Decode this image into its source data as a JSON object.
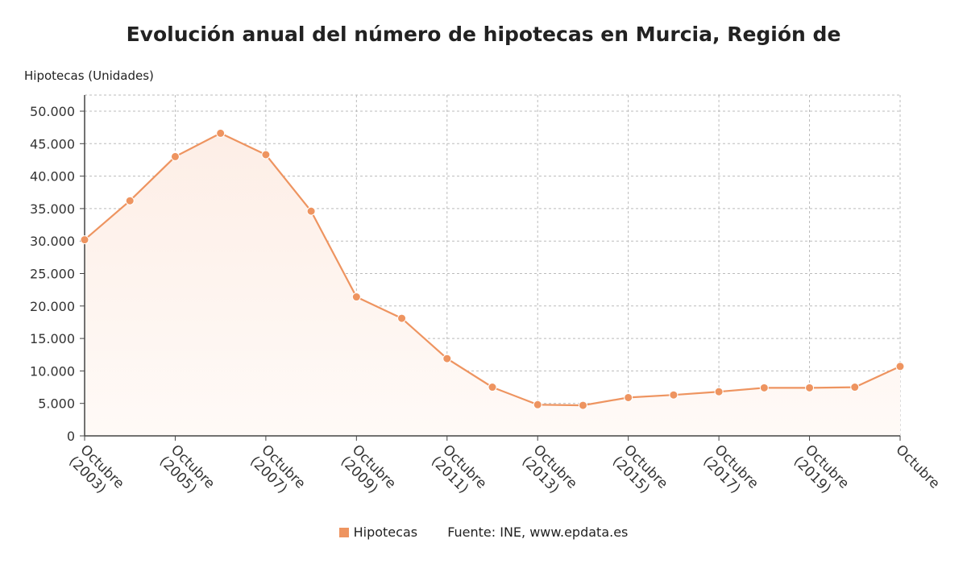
{
  "colors": {
    "series": "#ee9460",
    "area_top": "#fdeee6",
    "area_bottom": "#fffaf7",
    "grid": "#bbbbbb",
    "axis": "#444444"
  },
  "legend": {
    "series_label": "Hipotecas",
    "source": "Fuente: INE, www.epdata.es"
  },
  "chart_data": {
    "type": "area",
    "title": "Evolución anual del número de hipotecas en Murcia, Región de",
    "ylabel": "Hipotecas (Unidades)",
    "xlabel": "",
    "ylim": [
      0,
      50000
    ],
    "y_ticks": [
      "0",
      "5.000",
      "10.000",
      "15.000",
      "20.000",
      "25.000",
      "30.000",
      "35.000",
      "40.000",
      "45.000",
      "50.000"
    ],
    "x_tick_labels": [
      [
        "Octubre",
        "(2003)"
      ],
      [
        "Octubre",
        "(2005)"
      ],
      [
        "Octubre",
        "(2007)"
      ],
      [
        "Octubre",
        "(2009)"
      ],
      [
        "Octubre",
        "(2011)"
      ],
      [
        "Octubre",
        "(2013)"
      ],
      [
        "Octubre",
        "(2015)"
      ],
      [
        "Octubre",
        "(2017)"
      ],
      [
        "Octubre",
        "(2019)"
      ],
      [
        "Octubre"
      ]
    ],
    "grid": true,
    "legend_position": "bottom",
    "series": [
      {
        "name": "Hipotecas",
        "x": [
          2003,
          2004,
          2005,
          2006,
          2007,
          2008,
          2009,
          2010,
          2011,
          2012,
          2013,
          2014,
          2015,
          2016,
          2017,
          2018,
          2019,
          2020,
          2021
        ],
        "values": [
          30200,
          36200,
          43000,
          46600,
          43300,
          34600,
          21400,
          18100,
          11900,
          7500,
          4800,
          4700,
          5900,
          6300,
          6800,
          7400,
          7400,
          7500,
          10700
        ]
      }
    ]
  }
}
